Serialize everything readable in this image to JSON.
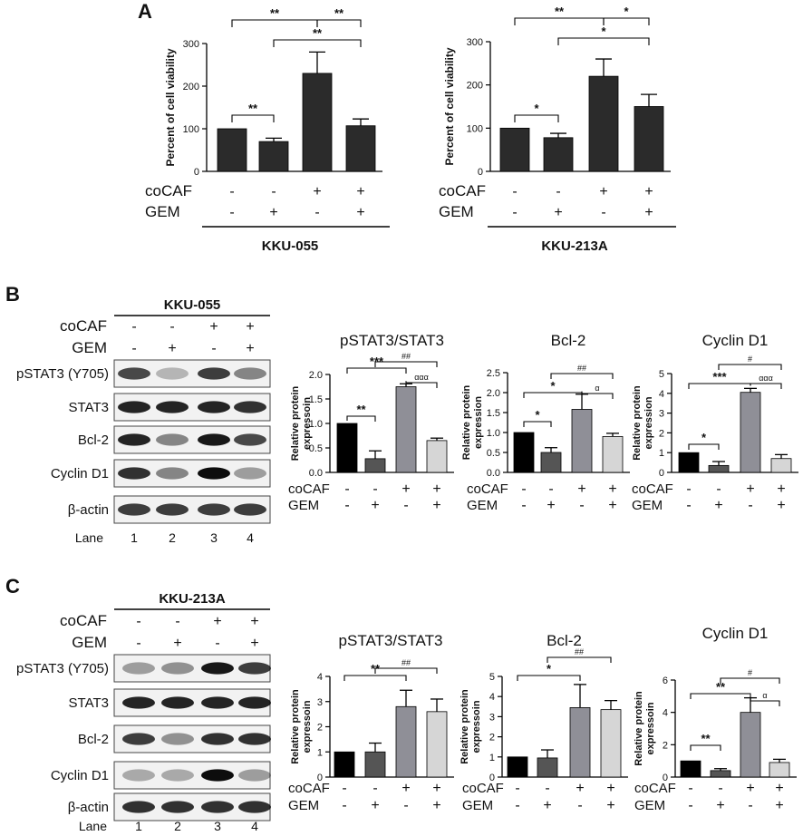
{
  "panels": {
    "A": "A",
    "B": "B",
    "C": "C"
  },
  "labels": {
    "cocaf": "coCAF",
    "gem": "GEM",
    "lane": "Lane",
    "lanes": [
      "1",
      "2",
      "3",
      "4"
    ],
    "cocaf_signs": [
      "-",
      "-",
      "+",
      "+"
    ],
    "gem_signs": [
      "-",
      "+",
      "-",
      "+"
    ]
  },
  "blots": {
    "B": {
      "cell_line": "KKU-055",
      "bands": [
        "pSTAT3 (Y705)",
        "STAT3",
        "Bcl-2",
        "Cyclin D1",
        "β-actin"
      ]
    },
    "C": {
      "cell_line": "KKU-213A",
      "bands": [
        "pSTAT3 (Y705)",
        "STAT3",
        "Bcl-2",
        "Cyclin D1",
        "β-actin"
      ]
    }
  },
  "colors": {
    "bar_dark": "#2b2b2b",
    "bar_black": "#000000",
    "bar_mid": "#555555",
    "bar_grey": "#8f8f97",
    "bar_light": "#d6d6d6"
  },
  "chart_data": [
    {
      "id": "A1",
      "type": "bar",
      "cell_line": "KKU-055",
      "ylabel": "Percent of cell viability",
      "ylim": [
        0,
        300
      ],
      "yticks": [
        0,
        100,
        200,
        300
      ],
      "values": [
        100,
        70,
        230,
        107
      ],
      "errors": [
        0,
        8,
        50,
        16
      ],
      "coCAF": [
        "-",
        "-",
        "+",
        "+"
      ],
      "GEM": [
        "-",
        "+",
        "-",
        "+"
      ],
      "significance": [
        {
          "pair": [
            1,
            2
          ],
          "label": "**"
        },
        {
          "pair": [
            1,
            3
          ],
          "label": "**"
        },
        {
          "pair": [
            2,
            4
          ],
          "label": "**"
        },
        {
          "pair": [
            3,
            4
          ],
          "label": "**"
        }
      ]
    },
    {
      "id": "A2",
      "type": "bar",
      "cell_line": "KKU-213A",
      "ylabel": "Percent of cell viability",
      "ylim": [
        0,
        300
      ],
      "yticks": [
        0,
        100,
        200,
        300
      ],
      "values": [
        100,
        78,
        220,
        150
      ],
      "errors": [
        0,
        10,
        40,
        28
      ],
      "coCAF": [
        "-",
        "-",
        "+",
        "+"
      ],
      "GEM": [
        "-",
        "+",
        "-",
        "+"
      ],
      "significance": [
        {
          "pair": [
            1,
            2
          ],
          "label": "*"
        },
        {
          "pair": [
            1,
            3
          ],
          "label": "**"
        },
        {
          "pair": [
            2,
            4
          ],
          "label": "*"
        },
        {
          "pair": [
            3,
            4
          ],
          "label": "*"
        }
      ]
    },
    {
      "id": "B1",
      "type": "bar",
      "title": "pSTAT3/STAT3",
      "ylabel": "Relative protein expressoin",
      "ylim": [
        0,
        2.0
      ],
      "yticks": [
        0.0,
        0.5,
        1.0,
        1.5,
        2.0
      ],
      "values": [
        1.0,
        0.28,
        1.75,
        0.65
      ],
      "errors": [
        0,
        0.16,
        0.06,
        0.05
      ],
      "coCAF": [
        "-",
        "-",
        "+",
        "+"
      ],
      "GEM": [
        "-",
        "+",
        "-",
        "+"
      ],
      "significance": [
        {
          "pair": [
            1,
            2
          ],
          "label": "**"
        },
        {
          "pair": [
            1,
            3
          ],
          "label": "***"
        },
        {
          "pair": [
            2,
            4
          ],
          "label": "##"
        },
        {
          "pair": [
            3,
            4
          ],
          "label": "ααα"
        }
      ]
    },
    {
      "id": "B2",
      "type": "bar",
      "title": "Bcl-2",
      "ylabel": "Relative protein expression",
      "ylim": [
        0,
        2.5
      ],
      "yticks": [
        0.0,
        0.5,
        1.0,
        1.5,
        2.0,
        2.5
      ],
      "values": [
        1.0,
        0.5,
        1.58,
        0.9
      ],
      "errors": [
        0,
        0.12,
        0.38,
        0.08
      ],
      "coCAF": [
        "-",
        "-",
        "+",
        "+"
      ],
      "GEM": [
        "-",
        "+",
        "-",
        "+"
      ],
      "significance": [
        {
          "pair": [
            1,
            2
          ],
          "label": "*"
        },
        {
          "pair": [
            1,
            3
          ],
          "label": "*"
        },
        {
          "pair": [
            2,
            4
          ],
          "label": "##"
        },
        {
          "pair": [
            3,
            4
          ],
          "label": "α"
        }
      ]
    },
    {
      "id": "B3",
      "type": "bar",
      "title": "Cyclin D1",
      "ylabel": "Relative protein expression",
      "ylim": [
        0,
        5
      ],
      "yticks": [
        0,
        1,
        2,
        3,
        4,
        5
      ],
      "values": [
        1.0,
        0.35,
        4.05,
        0.7
      ],
      "errors": [
        0,
        0.2,
        0.2,
        0.2
      ],
      "coCAF": [
        "-",
        "-",
        "+",
        "+"
      ],
      "GEM": [
        "-",
        "+",
        "-",
        "+"
      ],
      "significance": [
        {
          "pair": [
            1,
            2
          ],
          "label": "*"
        },
        {
          "pair": [
            1,
            3
          ],
          "label": "***"
        },
        {
          "pair": [
            2,
            4
          ],
          "label": "#"
        },
        {
          "pair": [
            3,
            4
          ],
          "label": "ααα"
        }
      ]
    },
    {
      "id": "C1",
      "type": "bar",
      "title": "pSTAT3/STAT3",
      "ylabel": "Relative protein expressoin",
      "ylim": [
        0,
        4
      ],
      "yticks": [
        0,
        1,
        2,
        3,
        4
      ],
      "values": [
        1.0,
        1.0,
        2.8,
        2.6
      ],
      "errors": [
        0,
        0.35,
        0.65,
        0.5
      ],
      "coCAF": [
        "-",
        "-",
        "+",
        "+"
      ],
      "GEM": [
        "-",
        "+",
        "-",
        "+"
      ],
      "significance": [
        {
          "pair": [
            1,
            3
          ],
          "label": "**"
        },
        {
          "pair": [
            2,
            4
          ],
          "label": "##"
        }
      ]
    },
    {
      "id": "C2",
      "type": "bar",
      "title": "Bcl-2",
      "ylabel": "Relative protein expressoin",
      "ylim": [
        0,
        5
      ],
      "yticks": [
        0,
        1,
        2,
        3,
        4,
        5
      ],
      "values": [
        1.0,
        0.95,
        3.45,
        3.35
      ],
      "errors": [
        0,
        0.4,
        1.15,
        0.45
      ],
      "coCAF": [
        "-",
        "-",
        "+",
        "+"
      ],
      "GEM": [
        "-",
        "+",
        "-",
        "+"
      ],
      "significance": [
        {
          "pair": [
            1,
            3
          ],
          "label": "*"
        },
        {
          "pair": [
            2,
            4
          ],
          "label": "##"
        }
      ]
    },
    {
      "id": "C3",
      "type": "bar",
      "title": "Cyclin D1",
      "ylabel": "Relative protein expressoin",
      "ylim": [
        0,
        6
      ],
      "yticks": [
        0,
        2,
        4,
        6
      ],
      "values": [
        1.0,
        0.4,
        4.0,
        0.9
      ],
      "errors": [
        0,
        0.12,
        0.9,
        0.2
      ],
      "coCAF": [
        "-",
        "-",
        "+",
        "+"
      ],
      "GEM": [
        "-",
        "+",
        "-",
        "+"
      ],
      "significance": [
        {
          "pair": [
            1,
            2
          ],
          "label": "**"
        },
        {
          "pair": [
            1,
            3
          ],
          "label": "**"
        },
        {
          "pair": [
            2,
            4
          ],
          "label": "#"
        },
        {
          "pair": [
            3,
            4
          ],
          "label": "α"
        }
      ]
    }
  ]
}
